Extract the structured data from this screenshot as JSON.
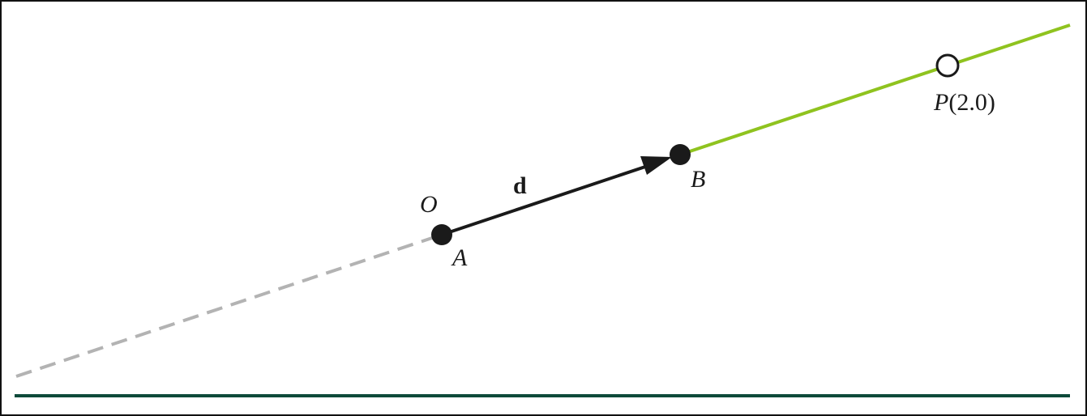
{
  "labels": {
    "origin": "O",
    "point_a": "A",
    "point_b": "B",
    "direction": "d",
    "p_name": "P",
    "p_param": "(2.0)"
  },
  "colors": {
    "frame": "#111111",
    "backward_ray": "#b3b3b3",
    "forward_ray": "#8fc31f",
    "vector": "#1a1a1a",
    "points": "#1a1a1a",
    "open_point_fill": "#ffffff",
    "baseline": "#0d4a3a"
  },
  "icons": {
    "vector_head": "arrowhead",
    "point_a": "filled-circle",
    "point_b": "filled-circle",
    "point_p": "open-circle"
  }
}
